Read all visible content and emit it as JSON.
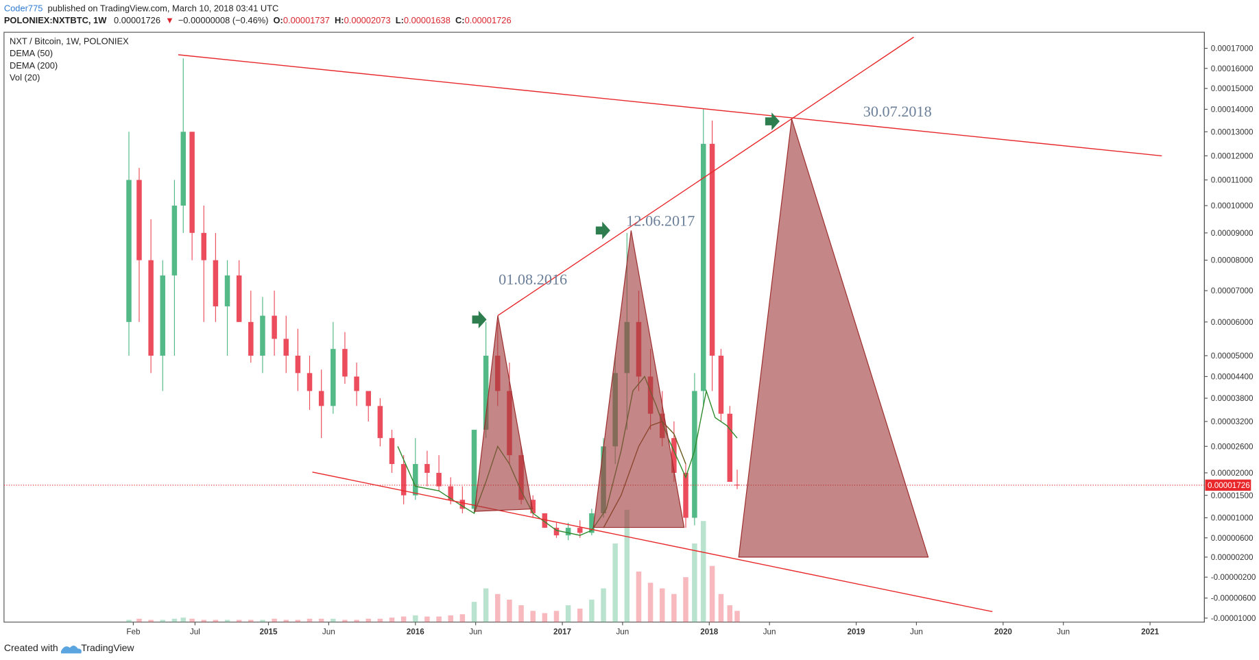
{
  "header": {
    "author": "Coder775",
    "published": "published on TradingView.com, March 10, 2018 03:41 UTC",
    "symbol": "POLONIEX:NXTBTC, 1W",
    "price": "0.00001726",
    "arrow": "▼",
    "change": "−0.00000008 (−0.46%)",
    "o_label": "O:",
    "o": "0.00001737",
    "h_label": "H:",
    "h": "0.00002073",
    "l_label": "L:",
    "l": "0.00001638",
    "c_label": "C:",
    "c": "0.00001726"
  },
  "footer": {
    "created": "Created with",
    "brand": "TradingView"
  },
  "chart_data": {
    "type": "candlestick",
    "title": "NXT / Bitcoin, 1W, POLONIEX",
    "up_color": "#53b987",
    "down_color": "#eb4d5c",
    "x": [
      2014.05,
      2014.12,
      2014.2,
      2014.28,
      2014.36,
      2014.42,
      2014.48,
      2014.56,
      2014.64,
      2014.72,
      2014.8,
      2014.88,
      2014.96,
      2015.04,
      2015.12,
      2015.2,
      2015.28,
      2015.36,
      2015.44,
      2015.52,
      2015.6,
      2015.68,
      2015.76,
      2015.84,
      2015.92,
      2016.0,
      2016.08,
      2016.16,
      2016.24,
      2016.32,
      2016.4,
      2016.48,
      2016.56,
      2016.64,
      2016.72,
      2016.8,
      2016.88,
      2016.96,
      2017.04,
      2017.12,
      2017.2,
      2017.28,
      2017.36,
      2017.44,
      2017.52,
      2017.6,
      2017.68,
      2017.76,
      2017.84,
      2017.9,
      2017.96,
      2018.02,
      2018.08,
      2018.14,
      2018.19
    ],
    "open": [
      6e-05,
      0.00011,
      8e-05,
      5e-05,
      7.5e-05,
      0.0001,
      0.00013,
      9e-05,
      8e-05,
      6.5e-05,
      7.5e-05,
      6e-05,
      5e-05,
      6.2e-05,
      5.5e-05,
      5e-05,
      4.5e-05,
      4e-05,
      3.6e-05,
      5.2e-05,
      4.4e-05,
      4e-05,
      3.6e-05,
      2.8e-05,
      2.2e-05,
      1.5e-05,
      2.2e-05,
      2e-05,
      1.7e-05,
      1.4e-05,
      1.2e-05,
      3e-05,
      5e-05,
      4e-05,
      2.4e-05,
      1.4e-05,
      1.1e-05,
      8e-06,
      6.5e-06,
      8e-06,
      7e-06,
      1.1e-05,
      2.6e-05,
      4.5e-05,
      6e-05,
      4.4e-05,
      3.4e-05,
      2.8e-05,
      2e-05,
      1e-05,
      4e-05,
      0.000125,
      5e-05,
      3.4e-05,
      1.737e-05
    ],
    "high": [
      0.00013,
      0.000115,
      9.5e-05,
      8e-05,
      0.00011,
      0.000165,
      0.00013,
      0.0001,
      9e-05,
      8e-05,
      8e-05,
      7e-05,
      6.8e-05,
      7e-05,
      6.2e-05,
      5.8e-05,
      5e-05,
      4.6e-05,
      6e-05,
      5.7e-05,
      4.8e-05,
      4e-05,
      3.8e-05,
      3e-05,
      2.4e-05,
      2.8e-05,
      2.5e-05,
      2.4e-05,
      1.9e-05,
      1.7e-05,
      3e-05,
      6e-05,
      6e-05,
      4.8e-05,
      2.6e-05,
      1.5e-05,
      1.1e-05,
      9e-06,
      9e-06,
      9.5e-06,
      1.2e-05,
      2.8e-05,
      5e-05,
      9e-05,
      7e-05,
      5.2e-05,
      4e-05,
      3.2e-05,
      2.2e-05,
      4.5e-05,
      0.00014,
      0.000135,
      5.2e-05,
      3.6e-05,
      2.073e-05
    ],
    "low": [
      5e-05,
      6e-05,
      4.5e-05,
      4e-05,
      5e-05,
      9e-05,
      8e-05,
      6e-05,
      6e-05,
      5e-05,
      6e-05,
      4.8e-05,
      4.5e-05,
      5e-05,
      4.5e-05,
      4e-05,
      3.5e-05,
      2.8e-05,
      3.4e-05,
      4.2e-05,
      3.6e-05,
      3.2e-05,
      2.6e-05,
      2e-05,
      1.3e-05,
      1.4e-05,
      1.7e-05,
      1.6e-05,
      1.3e-05,
      1.1e-05,
      1.1e-05,
      2.8e-05,
      3.6e-05,
      2.2e-05,
      1.3e-05,
      1e-05,
      8e-06,
      6e-06,
      5.5e-06,
      6e-06,
      6.5e-06,
      1e-05,
      2.2e-05,
      3e-05,
      4e-05,
      3e-05,
      2.6e-05,
      1.8e-05,
      8e-06,
      8.5e-06,
      3.6e-05,
      4e-05,
      3.2e-05,
      1.8e-05,
      1.638e-05
    ],
    "close": [
      0.00011,
      8e-05,
      5e-05,
      7.5e-05,
      0.0001,
      0.00013,
      9e-05,
      8e-05,
      6.5e-05,
      7.5e-05,
      6e-05,
      5e-05,
      6.2e-05,
      5.5e-05,
      5e-05,
      4.5e-05,
      4e-05,
      3.6e-05,
      5.2e-05,
      4.4e-05,
      4e-05,
      3.6e-05,
      2.8e-05,
      2.2e-05,
      1.5e-05,
      2.2e-05,
      2e-05,
      1.7e-05,
      1.4e-05,
      1.2e-05,
      3e-05,
      5e-05,
      4e-05,
      2.4e-05,
      1.4e-05,
      1.1e-05,
      8e-06,
      6.5e-06,
      8e-06,
      7e-06,
      1.1e-05,
      2.6e-05,
      4.5e-05,
      6e-05,
      4.4e-05,
      3.4e-05,
      2.8e-05,
      2e-05,
      1e-05,
      4e-05,
      0.000125,
      5e-05,
      3.4e-05,
      1.8e-05,
      1.726e-05
    ],
    "volume_name": "Vol (20)",
    "volume": [
      2,
      3,
      2,
      2,
      3,
      4,
      3,
      2,
      2,
      2,
      2,
      2,
      2,
      3,
      2,
      2,
      3,
      3,
      3,
      2,
      2,
      3,
      3,
      4,
      5,
      6,
      5,
      5,
      6,
      7,
      18,
      30,
      25,
      20,
      15,
      10,
      8,
      10,
      15,
      12,
      20,
      30,
      70,
      100,
      45,
      35,
      30,
      25,
      40,
      70,
      90,
      50,
      25,
      15,
      10
    ],
    "series": [
      {
        "name": "DEMA (50)",
        "color": "#2e8b2e",
        "x": [
          2015.88,
          2016.0,
          2016.16,
          2016.3,
          2016.4,
          2016.48,
          2016.56,
          2016.64,
          2016.72,
          2016.8,
          2016.96,
          2017.12,
          2017.2,
          2017.3,
          2017.4,
          2017.48,
          2017.56,
          2017.64,
          2017.72,
          2017.84,
          2017.9,
          2017.98,
          2018.04,
          2018.12,
          2018.19
        ],
        "values": [
          2.6e-05,
          1.7e-05,
          1.6e-05,
          1.3e-05,
          1.1e-05,
          1.8e-05,
          2.6e-05,
          2.2e-05,
          1.6e-05,
          1.1e-05,
          7.5e-06,
          6.5e-06,
          7.5e-06,
          1.2e-05,
          2.5e-05,
          4e-05,
          4.4e-05,
          3.6e-05,
          2.8e-05,
          1.9e-05,
          2.5e-05,
          4e-05,
          3.3e-05,
          3.1e-05,
          2.8e-05
        ]
      },
      {
        "name": "DEMA (200)",
        "color": "#6b5a1e",
        "x": [
          2017.28,
          2017.4,
          2017.52,
          2017.6,
          2017.68,
          2017.76,
          2017.84
        ],
        "values": [
          8e-06,
          1.5e-05,
          2.6e-05,
          3.1e-05,
          3.2e-05,
          2.9e-05,
          2.2e-05
        ]
      }
    ],
    "xlim": [
      2013.2,
      2021.37
    ],
    "xticks": [
      {
        "value": 2014.08,
        "label": "Feb"
      },
      {
        "value": 2014.5,
        "label": "Jul"
      },
      {
        "value": 2015,
        "label": "2015"
      },
      {
        "value": 2015.41,
        "label": "Jun"
      },
      {
        "value": 2016,
        "label": "2016"
      },
      {
        "value": 2016.41,
        "label": "Jun"
      },
      {
        "value": 2017,
        "label": "2017"
      },
      {
        "value": 2017.41,
        "label": "Jun"
      },
      {
        "value": 2018,
        "label": "2018"
      },
      {
        "value": 2018.41,
        "label": "Jun"
      },
      {
        "value": 2019,
        "label": "2019"
      },
      {
        "value": 2019.41,
        "label": "Jun"
      },
      {
        "value": 2020,
        "label": "2020"
      },
      {
        "value": 2020.41,
        "label": "Jun"
      },
      {
        "value": 2021,
        "label": "2021"
      }
    ],
    "ylim": [
      -1.08e-05,
      0.000178
    ],
    "yticks": [
      {
        "value": 0.00017,
        "label": "0.00017000"
      },
      {
        "value": 0.00016,
        "label": "0.00016000"
      },
      {
        "value": 0.00015,
        "label": "0.00015000"
      },
      {
        "value": 0.00014,
        "label": "0.00014000"
      },
      {
        "value": 0.00013,
        "label": "0.00013000"
      },
      {
        "value": 0.00012,
        "label": "0.00012000"
      },
      {
        "value": 0.00011,
        "label": "0.00011000"
      },
      {
        "value": 0.0001,
        "label": "0.00010000"
      },
      {
        "value": 9e-05,
        "label": "0.00009000"
      },
      {
        "value": 8e-05,
        "label": "0.00008000"
      },
      {
        "value": 7e-05,
        "label": "0.00007000"
      },
      {
        "value": 6e-05,
        "label": "0.00006000"
      },
      {
        "value": 5e-05,
        "label": "0.00005000"
      },
      {
        "value": 4.4e-05,
        "label": "0.00004400"
      },
      {
        "value": 3.8e-05,
        "label": "0.00003800"
      },
      {
        "value": 3.2e-05,
        "label": "0.00003200"
      },
      {
        "value": 2.6e-05,
        "label": "0.00002600"
      },
      {
        "value": 2e-05,
        "label": "0.00002000"
      },
      {
        "value": 1.5e-05,
        "label": "0.00001500"
      },
      {
        "value": 1e-05,
        "label": "0.00001000"
      },
      {
        "value": 6e-06,
        "label": "0.00000600"
      },
      {
        "value": 2e-06,
        "label": "0.00000200"
      },
      {
        "value": -2e-06,
        "label": "-0.00000200"
      },
      {
        "value": -6e-06,
        "label": "-0.00000600"
      },
      {
        "value": -1e-05,
        "label": "-0.00001000"
      }
    ],
    "price_line": {
      "value": 1.726e-05,
      "label": "0.00001726"
    },
    "annotations": [
      "01.08.2016",
      "12.06.2017",
      "30.07.2018"
    ]
  }
}
